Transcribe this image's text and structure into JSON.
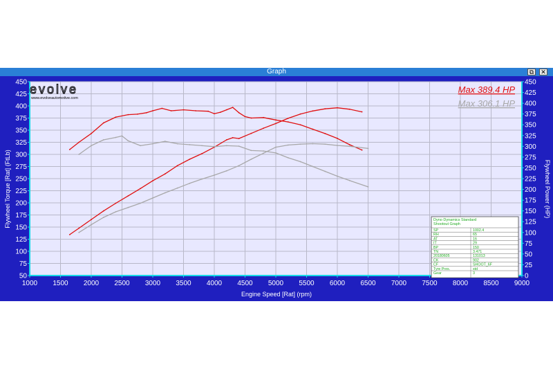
{
  "window": {
    "title": "Graph",
    "restore_label": "⧉",
    "close_label": "✕"
  },
  "logo": {
    "text": "evolve",
    "url": "www.evolveautomotive.com"
  },
  "annotations": {
    "max_red": "Max 389.4 HP",
    "max_gray": "Max 306.1 HP"
  },
  "info_table": {
    "header_lines": [
      "Dyno Dynamics Standard",
      "Shootout Graph"
    ],
    "rows": [
      [
        "SP",
        "1002.4"
      ],
      [
        "RH",
        "65"
      ],
      [
        "AT",
        "16"
      ],
      [
        "IT",
        "29"
      ],
      [
        "BP",
        "150"
      ],
      [
        "TN",
        "3.471"
      ],
      [
        "20180605",
        "131013"
      ],
      [
        "CK",
        "902"
      ],
      [
        "CF",
        "SHOOT_6F"
      ],
      [
        "Tyre Pres.",
        "std"
      ],
      [
        "Gear",
        "3"
      ]
    ]
  },
  "colors": {
    "plot_bg": "#e8e8ff",
    "frame_bg": "#1f1fbf",
    "grid": "#b8b8c8",
    "axis_cyan": "#17d8e8",
    "red": "#e01010",
    "gray": "#a8a8a8",
    "table_text": "#22aa22"
  },
  "chart_data": {
    "type": "line",
    "xlabel": "Engine Speed [Rat] (rpm)",
    "ylabel_left": "Flywheel Torque [Rat] (FtLb)",
    "ylabel_right": "Flywheel Power (HP)",
    "xlim": [
      1000,
      9000
    ],
    "ylim_left": [
      50,
      450
    ],
    "ylim_right": [
      0,
      450
    ],
    "x_ticks": [
      1000,
      1500,
      2000,
      2500,
      3000,
      3500,
      4000,
      4500,
      5000,
      5500,
      6000,
      6500,
      7000,
      7500,
      8000,
      8500,
      9000
    ],
    "y_left_ticks": [
      50,
      75,
      100,
      125,
      150,
      175,
      200,
      225,
      250,
      275,
      300,
      325,
      350,
      375,
      400,
      425,
      450
    ],
    "y_right_ticks": [
      0,
      25,
      50,
      75,
      100,
      125,
      150,
      175,
      200,
      225,
      250,
      275,
      300,
      325,
      350,
      375,
      400,
      425,
      450
    ],
    "grid": true,
    "series": [
      {
        "axis": "left",
        "color": "#e01010",
        "x": [
          1650,
          1800,
          2000,
          2200,
          2400,
          2600,
          2750,
          2900,
          3000,
          3150,
          3300,
          3500,
          3700,
          3900,
          4000,
          4100,
          4200,
          4300,
          4400,
          4500,
          4600,
          4800,
          5000,
          5200,
          5400,
          5600,
          5800,
          6000,
          6200,
          6400
        ],
        "y": [
          310,
          325,
          343,
          365,
          377,
          382,
          383,
          386,
          390,
          395,
          390,
          392,
          390,
          389,
          384,
          387,
          392,
          397,
          386,
          378,
          375,
          376,
          371,
          367,
          361,
          352,
          343,
          333,
          320,
          309
        ]
      },
      {
        "axis": "right",
        "color": "#e01010",
        "x": [
          1650,
          1800,
          2000,
          2200,
          2400,
          2600,
          2800,
          3000,
          3200,
          3400,
          3600,
          3800,
          4000,
          4200,
          4300,
          4400,
          4600,
          4800,
          5000,
          5200,
          5400,
          5600,
          5800,
          6000,
          6200,
          6400
        ],
        "y": [
          95,
          110,
          130,
          150,
          168,
          185,
          202,
          220,
          236,
          255,
          270,
          283,
          298,
          315,
          320,
          318,
          330,
          342,
          353,
          365,
          375,
          382,
          387,
          389.4,
          386,
          380
        ]
      },
      {
        "axis": "left",
        "color": "#a8a8a8",
        "x": [
          1800,
          2000,
          2200,
          2400,
          2500,
          2600,
          2800,
          3000,
          3200,
          3400,
          3600,
          3800,
          4000,
          4200,
          4400,
          4600,
          4800,
          5000,
          5200,
          5400,
          5600,
          5800,
          6000,
          6200,
          6500
        ],
        "y": [
          300,
          318,
          330,
          335,
          338,
          328,
          318,
          322,
          327,
          322,
          320,
          318,
          316,
          318,
          317,
          308,
          307,
          303,
          293,
          285,
          275,
          265,
          255,
          246,
          233
        ]
      },
      {
        "axis": "right",
        "color": "#a8a8a8",
        "x": [
          1800,
          2000,
          2200,
          2400,
          2600,
          2800,
          3000,
          3200,
          3400,
          3600,
          3800,
          4000,
          4200,
          4400,
          4600,
          4800,
          5000,
          5200,
          5400,
          5600,
          5800,
          6000,
          6200,
          6500
        ],
        "y": [
          100,
          118,
          135,
          148,
          158,
          168,
          180,
          192,
          203,
          214,
          224,
          233,
          243,
          255,
          270,
          284,
          298,
          303,
          305,
          306.1,
          305,
          302,
          300,
          295
        ]
      }
    ]
  }
}
